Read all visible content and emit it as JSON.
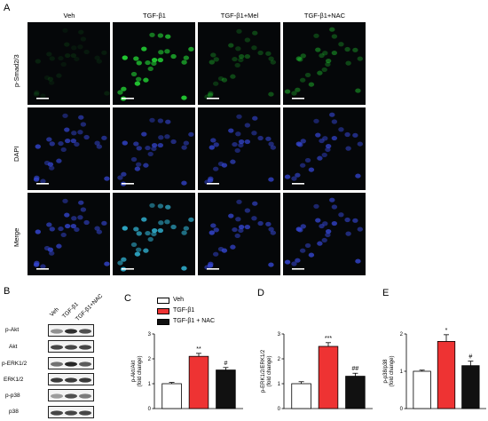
{
  "panels": {
    "a": "A",
    "b": "B",
    "c": "C",
    "d": "D",
    "e": "E"
  },
  "micrograph": {
    "columns": [
      "Veh",
      "TGF-β1",
      "TGF-β1+Mel",
      "TGF-β1+NAC"
    ],
    "rows": [
      "p-Smad2/3",
      "DAPI",
      "Merge"
    ]
  },
  "blot": {
    "lanes": [
      "Veh",
      "TGF-β1",
      "TGF-β1+NAC"
    ],
    "bands": [
      "p-Akt",
      "Akt",
      "p-ERK1/2",
      "ERK1/2",
      "p-p38",
      "p38"
    ]
  },
  "legend": {
    "items": [
      {
        "label": "Veh",
        "color": "#ffffff"
      },
      {
        "label": "TGF-β1",
        "color": "#ee3333"
      },
      {
        "label": "TGF-β1 + NAC",
        "color": "#111111"
      }
    ]
  },
  "colors": {
    "veh": "#ffffff",
    "tgf": "#ee3333",
    "nac": "#111111",
    "green_stain": "#22cc33",
    "blue_stain": "#3344cc",
    "cyan_stain": "#33bbdd"
  },
  "chart_data": [
    {
      "type": "bar",
      "panel": "C",
      "categories": [
        "Veh",
        "TGF-β1",
        "TGF-β1 + NAC"
      ],
      "values": [
        1.0,
        2.1,
        1.55
      ],
      "errors": [
        0.05,
        0.12,
        0.1
      ],
      "ylabel": "p-Akt/Akt\n(fold change)",
      "ylim": [
        0,
        3
      ],
      "yticks": [
        "0",
        "1",
        "2",
        "3"
      ],
      "annotations": [
        "",
        "**",
        "#"
      ]
    },
    {
      "type": "bar",
      "panel": "D",
      "categories": [
        "Veh",
        "TGF-β1",
        "TGF-β1 + NAC"
      ],
      "values": [
        1.0,
        2.5,
        1.3
      ],
      "errors": [
        0.08,
        0.15,
        0.12
      ],
      "ylabel": "p-ERK1/2/ERK1/2\n(fold change)",
      "ylim": [
        0,
        3
      ],
      "yticks": [
        "0",
        "1",
        "2",
        "3"
      ],
      "annotations": [
        "",
        "***",
        "##"
      ]
    },
    {
      "type": "bar",
      "panel": "E",
      "categories": [
        "Veh",
        "TGF-β1",
        "TGF-β1 + NAC"
      ],
      "values": [
        1.0,
        1.8,
        1.15
      ],
      "errors": [
        0.03,
        0.18,
        0.12
      ],
      "ylabel": "p-p38/p38\n(fold change)",
      "ylim": [
        0,
        2
      ],
      "yticks": [
        "0",
        "1",
        "2"
      ],
      "annotations": [
        "",
        "*",
        "#"
      ]
    }
  ]
}
